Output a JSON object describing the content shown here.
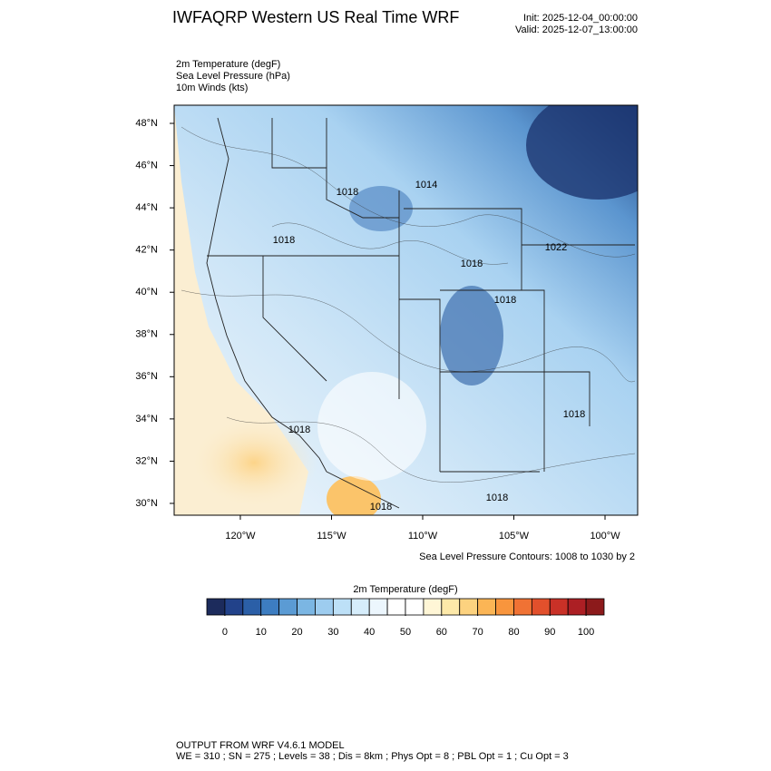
{
  "header": {
    "title": "IWFAQRP Western US Real Time WRF",
    "init": "Init: 2025-12-04_00:00:00",
    "valid": "Valid: 2025-12-07_13:00:00",
    "fields": [
      "2m Temperature   (degF)",
      "Sea Level Pressure   (hPa)",
      "10m Winds   (kts)"
    ]
  },
  "map": {
    "xlim": [
      -123.63,
      -98.21
    ],
    "ylim": [
      29.44,
      48.86
    ],
    "xticks": [
      {
        "value": -120,
        "label": "120°W"
      },
      {
        "value": -115,
        "label": "115°W"
      },
      {
        "value": -110,
        "label": "110°W"
      },
      {
        "value": -105,
        "label": "105°W"
      },
      {
        "value": -100,
        "label": "100°W"
      }
    ],
    "yticks": [
      {
        "value": 48,
        "label": "48°N"
      },
      {
        "value": 46,
        "label": "46°N"
      },
      {
        "value": 44,
        "label": "44°N"
      },
      {
        "value": 42,
        "label": "42°N"
      },
      {
        "value": 40,
        "label": "40°N"
      },
      {
        "value": 38,
        "label": "38°N"
      },
      {
        "value": 36,
        "label": "36°N"
      },
      {
        "value": 34,
        "label": "34°N"
      },
      {
        "value": 32,
        "label": "32°N"
      },
      {
        "value": 30,
        "label": "30°N"
      }
    ],
    "contour_labels": [
      1018,
      1014,
      1018,
      1022,
      1018,
      1018,
      1018,
      1018,
      1018,
      1018
    ],
    "contour_note": "Sea Level Pressure Contours: 1008 to 1030 by 2"
  },
  "colorbar": {
    "title": "2m Temperature  (degF)",
    "lim": [
      -5,
      105
    ],
    "ticks": [
      0,
      10,
      20,
      30,
      40,
      50,
      60,
      70,
      80,
      90,
      100
    ],
    "colors": [
      "#1c2b5c",
      "#22428a",
      "#2b5fa7",
      "#3d7dc1",
      "#5b9bd4",
      "#7bb6e3",
      "#9dccef",
      "#bde0f7",
      "#d6edfb",
      "#ecf6fd",
      "#ffffff",
      "#ffffff",
      "#fff6d6",
      "#fde9a9",
      "#fcd27f",
      "#fbb555",
      "#f8953d",
      "#f07234",
      "#e2502c",
      "#c93127",
      "#ac1f24",
      "#8c1a1b"
    ]
  },
  "footer": {
    "model": "OUTPUT FROM WRF V4.6.1 MODEL",
    "config": "WE = 310 ; SN = 275 ; Levels = 38 ; Dis = 8km ; Phys Opt = 8 ; PBL Opt = 1 ; Cu Opt = 3"
  }
}
